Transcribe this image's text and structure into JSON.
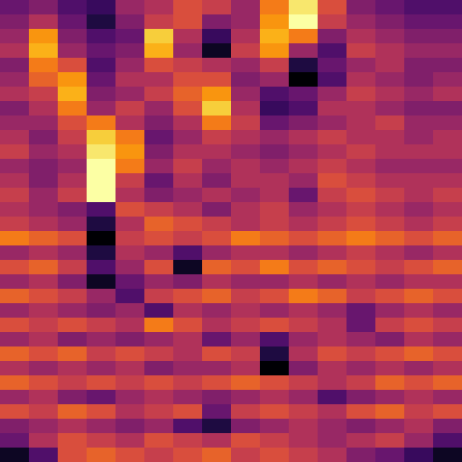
{
  "chart_data": {
    "type": "heatmap",
    "color": "inferno",
    "tick_labels": false,
    "cells": [
      [
        0.35,
        0.4,
        0.3,
        0.25,
        0.45,
        0.5,
        0.6,
        0.55,
        0.45,
        0.7,
        0.9,
        0.6,
        0.4,
        0.35,
        0.3,
        0.3
      ],
      [
        0.4,
        0.5,
        0.35,
        0.2,
        0.4,
        0.55,
        0.6,
        0.4,
        0.45,
        0.75,
        0.95,
        0.55,
        0.45,
        0.4,
        0.35,
        0.35
      ],
      [
        0.45,
        0.75,
        0.4,
        0.3,
        0.35,
        0.85,
        0.5,
        0.25,
        0.5,
        0.8,
        0.7,
        0.4,
        0.5,
        0.45,
        0.4,
        0.4
      ],
      [
        0.5,
        0.8,
        0.45,
        0.35,
        0.4,
        0.8,
        0.45,
        0.15,
        0.55,
        0.75,
        0.45,
        0.3,
        0.55,
        0.5,
        0.45,
        0.45
      ],
      [
        0.4,
        0.7,
        0.6,
        0.3,
        0.45,
        0.6,
        0.55,
        0.5,
        0.45,
        0.55,
        0.2,
        0.35,
        0.45,
        0.5,
        0.4,
        0.4
      ],
      [
        0.45,
        0.65,
        0.75,
        0.35,
        0.5,
        0.5,
        0.6,
        0.6,
        0.4,
        0.45,
        0.1,
        0.3,
        0.5,
        0.45,
        0.4,
        0.45
      ],
      [
        0.5,
        0.55,
        0.8,
        0.4,
        0.45,
        0.55,
        0.65,
        0.75,
        0.45,
        0.3,
        0.35,
        0.45,
        0.55,
        0.5,
        0.45,
        0.5
      ],
      [
        0.4,
        0.5,
        0.7,
        0.45,
        0.55,
        0.45,
        0.6,
        0.85,
        0.5,
        0.25,
        0.3,
        0.5,
        0.5,
        0.45,
        0.4,
        0.4
      ],
      [
        0.45,
        0.45,
        0.6,
        0.7,
        0.5,
        0.4,
        0.5,
        0.7,
        0.55,
        0.35,
        0.4,
        0.45,
        0.5,
        0.55,
        0.45,
        0.45
      ],
      [
        0.5,
        0.4,
        0.55,
        0.85,
        0.7,
        0.35,
        0.45,
        0.55,
        0.5,
        0.45,
        0.5,
        0.55,
        0.5,
        0.5,
        0.45,
        0.5
      ],
      [
        0.55,
        0.45,
        0.5,
        0.9,
        0.75,
        0.4,
        0.5,
        0.5,
        0.45,
        0.4,
        0.45,
        0.5,
        0.55,
        0.5,
        0.5,
        0.5
      ],
      [
        0.45,
        0.4,
        0.45,
        0.95,
        0.7,
        0.45,
        0.55,
        0.45,
        0.5,
        0.45,
        0.5,
        0.55,
        0.5,
        0.45,
        0.45,
        0.45
      ],
      [
        0.5,
        0.4,
        0.5,
        0.95,
        0.55,
        0.35,
        0.5,
        0.4,
        0.5,
        0.5,
        0.45,
        0.6,
        0.55,
        0.5,
        0.5,
        0.5
      ],
      [
        0.55,
        0.45,
        0.55,
        0.95,
        0.5,
        0.4,
        0.45,
        0.5,
        0.45,
        0.5,
        0.35,
        0.55,
        0.6,
        0.55,
        0.5,
        0.55
      ],
      [
        0.5,
        0.45,
        0.4,
        0.3,
        0.6,
        0.55,
        0.5,
        0.4,
        0.5,
        0.55,
        0.45,
        0.5,
        0.55,
        0.5,
        0.45,
        0.5
      ],
      [
        0.55,
        0.5,
        0.45,
        0.2,
        0.5,
        0.65,
        0.6,
        0.55,
        0.5,
        0.55,
        0.5,
        0.55,
        0.6,
        0.55,
        0.5,
        0.55
      ],
      [
        0.7,
        0.65,
        0.6,
        0.1,
        0.55,
        0.6,
        0.55,
        0.6,
        0.7,
        0.65,
        0.6,
        0.65,
        0.7,
        0.65,
        0.6,
        0.65
      ],
      [
        0.45,
        0.5,
        0.45,
        0.2,
        0.5,
        0.45,
        0.3,
        0.45,
        0.5,
        0.5,
        0.45,
        0.5,
        0.55,
        0.5,
        0.45,
        0.5
      ],
      [
        0.6,
        0.65,
        0.55,
        0.3,
        0.45,
        0.6,
        0.15,
        0.65,
        0.6,
        0.7,
        0.6,
        0.65,
        0.6,
        0.55,
        0.6,
        0.65
      ],
      [
        0.45,
        0.5,
        0.4,
        0.15,
        0.35,
        0.45,
        0.4,
        0.5,
        0.45,
        0.45,
        0.5,
        0.45,
        0.5,
        0.45,
        0.5,
        0.5
      ],
      [
        0.65,
        0.6,
        0.55,
        0.45,
        0.3,
        0.55,
        0.6,
        0.65,
        0.55,
        0.6,
        0.7,
        0.65,
        0.55,
        0.6,
        0.65,
        0.6
      ],
      [
        0.45,
        0.5,
        0.45,
        0.4,
        0.45,
        0.3,
        0.5,
        0.45,
        0.5,
        0.45,
        0.5,
        0.45,
        0.35,
        0.45,
        0.5,
        0.45
      ],
      [
        0.6,
        0.55,
        0.6,
        0.55,
        0.5,
        0.7,
        0.6,
        0.5,
        0.55,
        0.6,
        0.55,
        0.5,
        0.35,
        0.55,
        0.6,
        0.55
      ],
      [
        0.45,
        0.5,
        0.4,
        0.45,
        0.4,
        0.45,
        0.5,
        0.35,
        0.45,
        0.3,
        0.45,
        0.5,
        0.45,
        0.4,
        0.5,
        0.45
      ],
      [
        0.65,
        0.6,
        0.65,
        0.55,
        0.6,
        0.55,
        0.5,
        0.6,
        0.55,
        0.2,
        0.5,
        0.6,
        0.55,
        0.6,
        0.65,
        0.6
      ],
      [
        0.5,
        0.45,
        0.5,
        0.45,
        0.5,
        0.4,
        0.45,
        0.45,
        0.5,
        0.1,
        0.4,
        0.5,
        0.45,
        0.5,
        0.45,
        0.5
      ],
      [
        0.65,
        0.6,
        0.55,
        0.6,
        0.55,
        0.6,
        0.55,
        0.6,
        0.65,
        0.6,
        0.55,
        0.5,
        0.55,
        0.65,
        0.6,
        0.65
      ],
      [
        0.45,
        0.5,
        0.4,
        0.35,
        0.45,
        0.5,
        0.45,
        0.4,
        0.45,
        0.5,
        0.45,
        0.3,
        0.4,
        0.45,
        0.5,
        0.45
      ],
      [
        0.6,
        0.55,
        0.65,
        0.6,
        0.5,
        0.55,
        0.6,
        0.35,
        0.55,
        0.6,
        0.55,
        0.5,
        0.6,
        0.65,
        0.55,
        0.6
      ],
      [
        0.4,
        0.45,
        0.5,
        0.45,
        0.4,
        0.45,
        0.3,
        0.2,
        0.4,
        0.45,
        0.5,
        0.45,
        0.4,
        0.45,
        0.5,
        0.4
      ],
      [
        0.35,
        0.5,
        0.6,
        0.55,
        0.5,
        0.6,
        0.55,
        0.5,
        0.6,
        0.55,
        0.5,
        0.45,
        0.5,
        0.55,
        0.45,
        0.3
      ],
      [
        0.15,
        0.3,
        0.6,
        0.65,
        0.6,
        0.55,
        0.6,
        0.65,
        0.55,
        0.6,
        0.55,
        0.5,
        0.4,
        0.35,
        0.25,
        0.15
      ]
    ]
  }
}
